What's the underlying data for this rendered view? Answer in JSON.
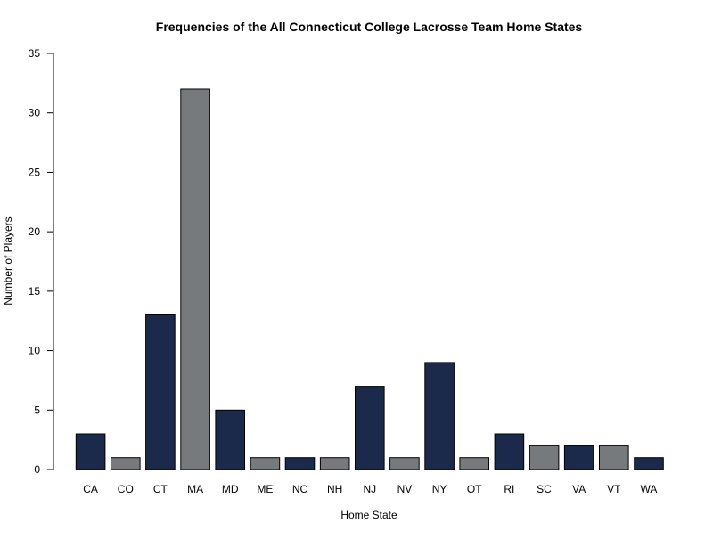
{
  "colors": {
    "navy": "#1b2a4a",
    "gray": "#777a7d",
    "bar_outline": "#000000",
    "axis": "#000000"
  },
  "chart_data": {
    "type": "bar",
    "title": "Frequencies of the All Connecticut College Lacrosse Team Home States",
    "xlabel": "Home State",
    "ylabel": "Number of Players",
    "categories": [
      "CA",
      "CO",
      "CT",
      "MA",
      "MD",
      "ME",
      "NC",
      "NH",
      "NJ",
      "NV",
      "NY",
      "OT",
      "RI",
      "SC",
      "VA",
      "VT",
      "WA"
    ],
    "values": [
      3,
      1,
      13,
      32,
      5,
      1,
      1,
      1,
      7,
      1,
      9,
      1,
      3,
      2,
      2,
      2,
      1
    ],
    "bar_colors": [
      "navy",
      "gray",
      "navy",
      "gray",
      "navy",
      "gray",
      "navy",
      "gray",
      "navy",
      "gray",
      "navy",
      "gray",
      "navy",
      "gray",
      "navy",
      "gray",
      "navy"
    ],
    "ylim": [
      0,
      35
    ],
    "yticks": [
      0,
      5,
      10,
      15,
      20,
      25,
      30,
      35
    ],
    "grid": false,
    "legend": "none"
  }
}
